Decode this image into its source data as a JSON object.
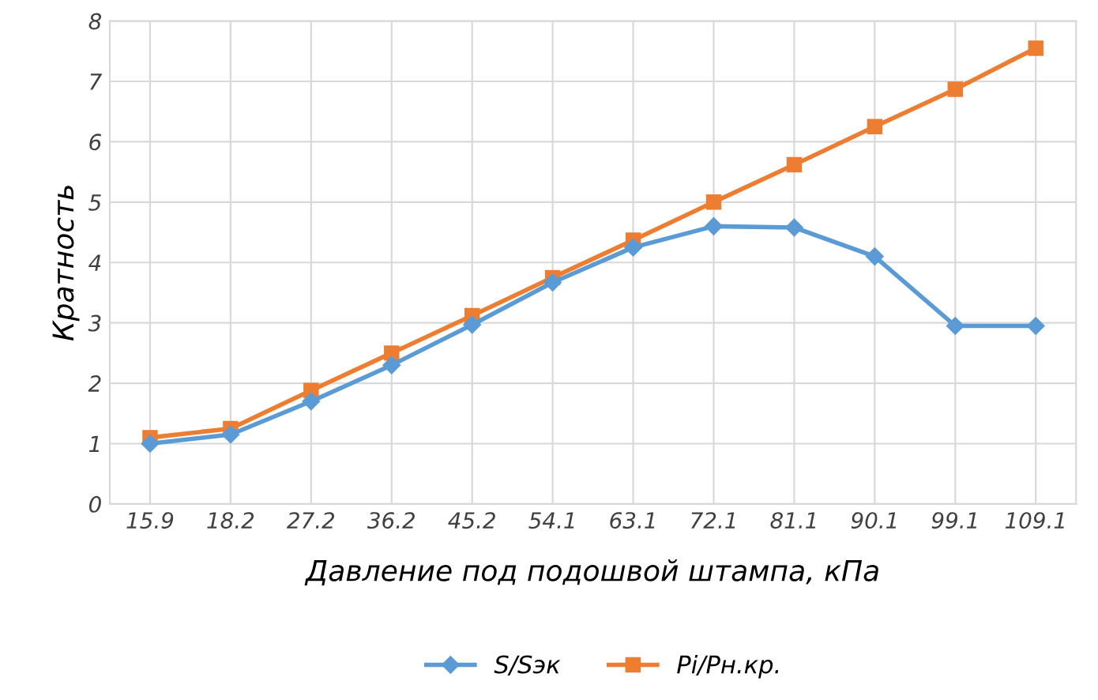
{
  "chart_data": {
    "type": "line",
    "xlabel": "Давление под подошвой штампа, кПа",
    "ylabel": "Кратность",
    "categories": [
      "15.9",
      "18.2",
      "27.2",
      "36.2",
      "45.2",
      "54.1",
      "63.1",
      "72.1",
      "81.1",
      "90.1",
      "99.1",
      "109.1"
    ],
    "series": [
      {
        "name": "S/Sэк",
        "color": "#5b9bd5",
        "marker": "diamond",
        "values": [
          1.0,
          1.15,
          1.7,
          2.3,
          2.97,
          3.67,
          4.25,
          4.6,
          4.58,
          4.1,
          2.95,
          2.95
        ]
      },
      {
        "name": "Pi/Pн.кр.",
        "color": "#ed7d31",
        "marker": "square",
        "values": [
          1.1,
          1.25,
          1.88,
          2.5,
          3.12,
          3.75,
          4.37,
          5.0,
          5.62,
          6.25,
          6.87,
          7.55
        ]
      }
    ],
    "ylim": [
      0,
      8
    ],
    "yticks": [
      0,
      1,
      2,
      3,
      4,
      5,
      6,
      7,
      8
    ],
    "grid": true,
    "legend": "bottom",
    "line_style": "solid"
  }
}
